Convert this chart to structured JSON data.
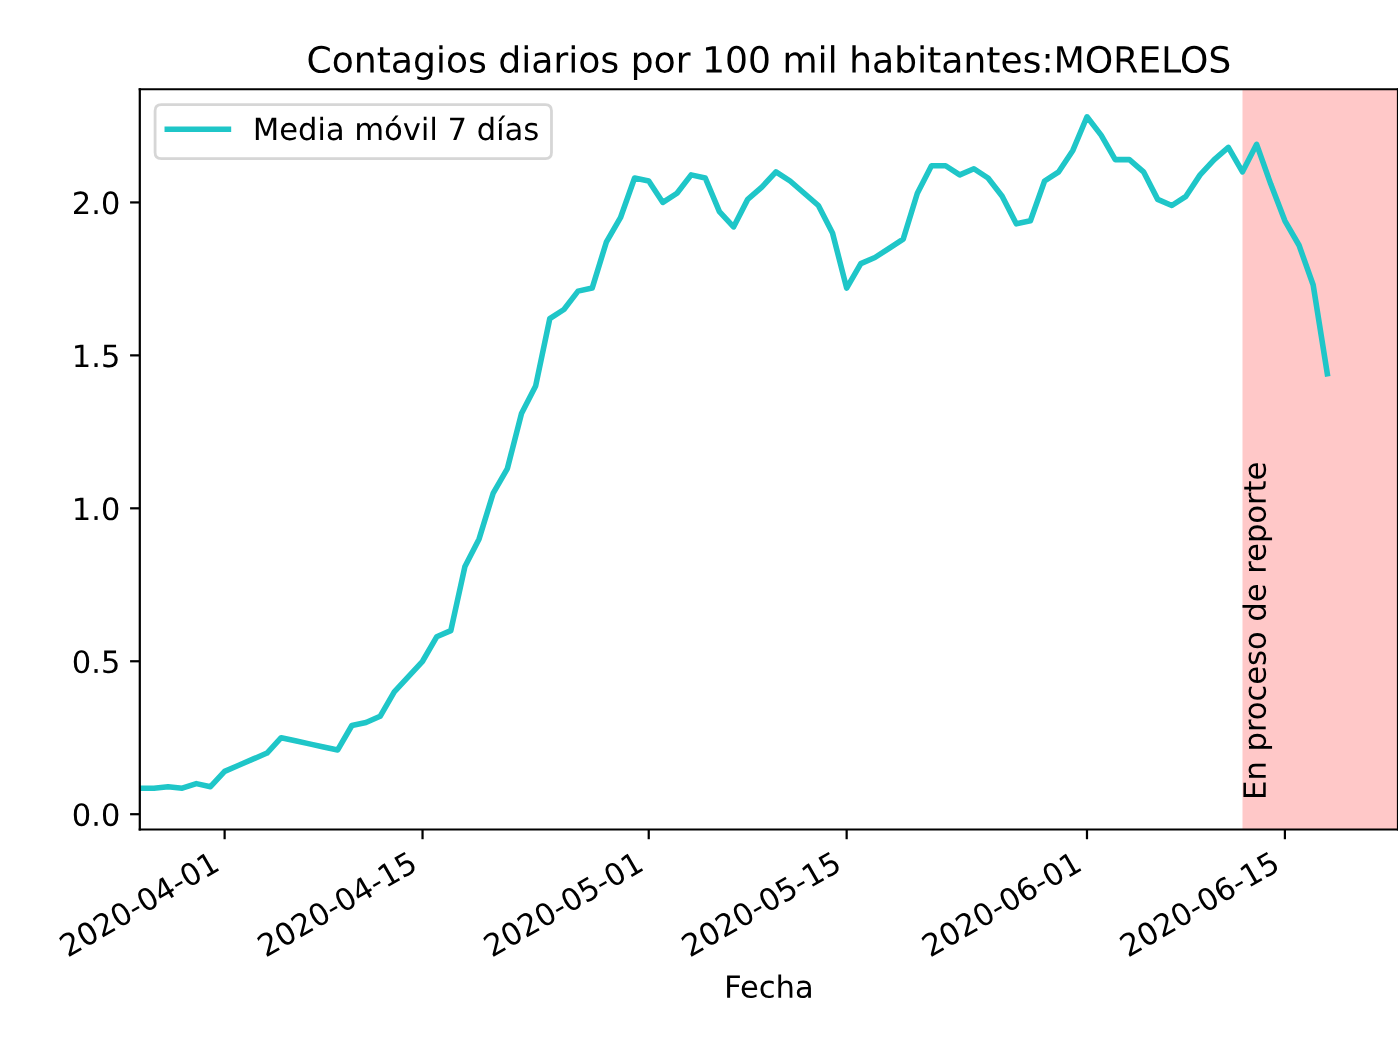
{
  "chart_data": {
    "type": "line",
    "title": "Contagios diarios por 100 mil habitantes:MORELOS",
    "xlabel": "Fecha",
    "x": [
      "2020-03-26",
      "2020-03-27",
      "2020-03-28",
      "2020-03-29",
      "2020-03-30",
      "2020-03-31",
      "2020-04-01",
      "2020-04-02",
      "2020-04-03",
      "2020-04-04",
      "2020-04-05",
      "2020-04-06",
      "2020-04-07",
      "2020-04-08",
      "2020-04-09",
      "2020-04-10",
      "2020-04-11",
      "2020-04-12",
      "2020-04-13",
      "2020-04-14",
      "2020-04-15",
      "2020-04-16",
      "2020-04-17",
      "2020-04-18",
      "2020-04-19",
      "2020-04-20",
      "2020-04-21",
      "2020-04-22",
      "2020-04-23",
      "2020-04-24",
      "2020-04-25",
      "2020-04-26",
      "2020-04-27",
      "2020-04-28",
      "2020-04-29",
      "2020-04-30",
      "2020-05-01",
      "2020-05-02",
      "2020-05-03",
      "2020-05-04",
      "2020-05-05",
      "2020-05-06",
      "2020-05-07",
      "2020-05-08",
      "2020-05-09",
      "2020-05-10",
      "2020-05-11",
      "2020-05-12",
      "2020-05-13",
      "2020-05-14",
      "2020-05-15",
      "2020-05-16",
      "2020-05-17",
      "2020-05-18",
      "2020-05-19",
      "2020-05-20",
      "2020-05-21",
      "2020-05-22",
      "2020-05-23",
      "2020-05-24",
      "2020-05-25",
      "2020-05-26",
      "2020-05-27",
      "2020-05-28",
      "2020-05-29",
      "2020-05-30",
      "2020-05-31",
      "2020-06-01",
      "2020-06-02",
      "2020-06-03",
      "2020-06-04",
      "2020-06-05",
      "2020-06-06",
      "2020-06-07",
      "2020-06-08",
      "2020-06-09",
      "2020-06-10",
      "2020-06-11",
      "2020-06-12",
      "2020-06-13",
      "2020-06-14",
      "2020-06-15",
      "2020-06-16",
      "2020-06-17",
      "2020-06-18"
    ],
    "series": [
      {
        "name": "Media móvil 7 días",
        "color": "#1fc6c8",
        "values": [
          0.085,
          0.085,
          0.09,
          0.085,
          0.1,
          0.09,
          0.14,
          0.16,
          0.18,
          0.2,
          0.25,
          0.24,
          0.23,
          0.22,
          0.21,
          0.29,
          0.3,
          0.32,
          0.4,
          0.45,
          0.5,
          0.58,
          0.6,
          0.81,
          0.9,
          1.05,
          1.13,
          1.31,
          1.4,
          1.62,
          1.65,
          1.71,
          1.72,
          1.87,
          1.95,
          2.08,
          2.07,
          2.0,
          2.03,
          2.09,
          2.08,
          1.97,
          1.92,
          2.01,
          2.05,
          2.1,
          2.07,
          2.03,
          1.99,
          1.9,
          1.72,
          1.8,
          1.82,
          1.85,
          1.88,
          2.03,
          2.12,
          2.12,
          2.09,
          2.11,
          2.08,
          2.02,
          1.93,
          1.94,
          2.07,
          2.1,
          2.17,
          2.28,
          2.22,
          2.14,
          2.14,
          2.1,
          2.01,
          1.99,
          2.02,
          2.09,
          2.14,
          2.18,
          2.1,
          2.19,
          2.06,
          1.94,
          1.86,
          1.73,
          1.44
        ]
      }
    ],
    "xlim": [
      "2020-03-26",
      "2020-06-23"
    ],
    "xticks": [
      {
        "value": "2020-04-01",
        "label": "2020-04-01"
      },
      {
        "value": "2020-04-15",
        "label": "2020-04-15"
      },
      {
        "value": "2020-05-01",
        "label": "2020-05-01"
      },
      {
        "value": "2020-05-15",
        "label": "2020-05-15"
      },
      {
        "value": "2020-06-01",
        "label": "2020-06-01"
      },
      {
        "value": "2020-06-15",
        "label": "2020-06-15"
      }
    ],
    "ylim": [
      -0.05,
      2.37
    ],
    "yticks": [
      {
        "value": 0,
        "label": "0.0"
      },
      {
        "value": 0.5,
        "label": "0.5"
      },
      {
        "value": 1,
        "label": "1.0"
      },
      {
        "value": 1.5,
        "label": "1.5"
      },
      {
        "value": 2,
        "label": "2.0"
      }
    ],
    "bands": [
      {
        "axis": "x",
        "from": "2020-06-12",
        "to": "2020-06-23",
        "label": "En proceso de reporte",
        "color": "#ffc8c8"
      }
    ],
    "legend": "top left",
    "grid": false,
    "line_style": "solid",
    "marker": "none"
  }
}
